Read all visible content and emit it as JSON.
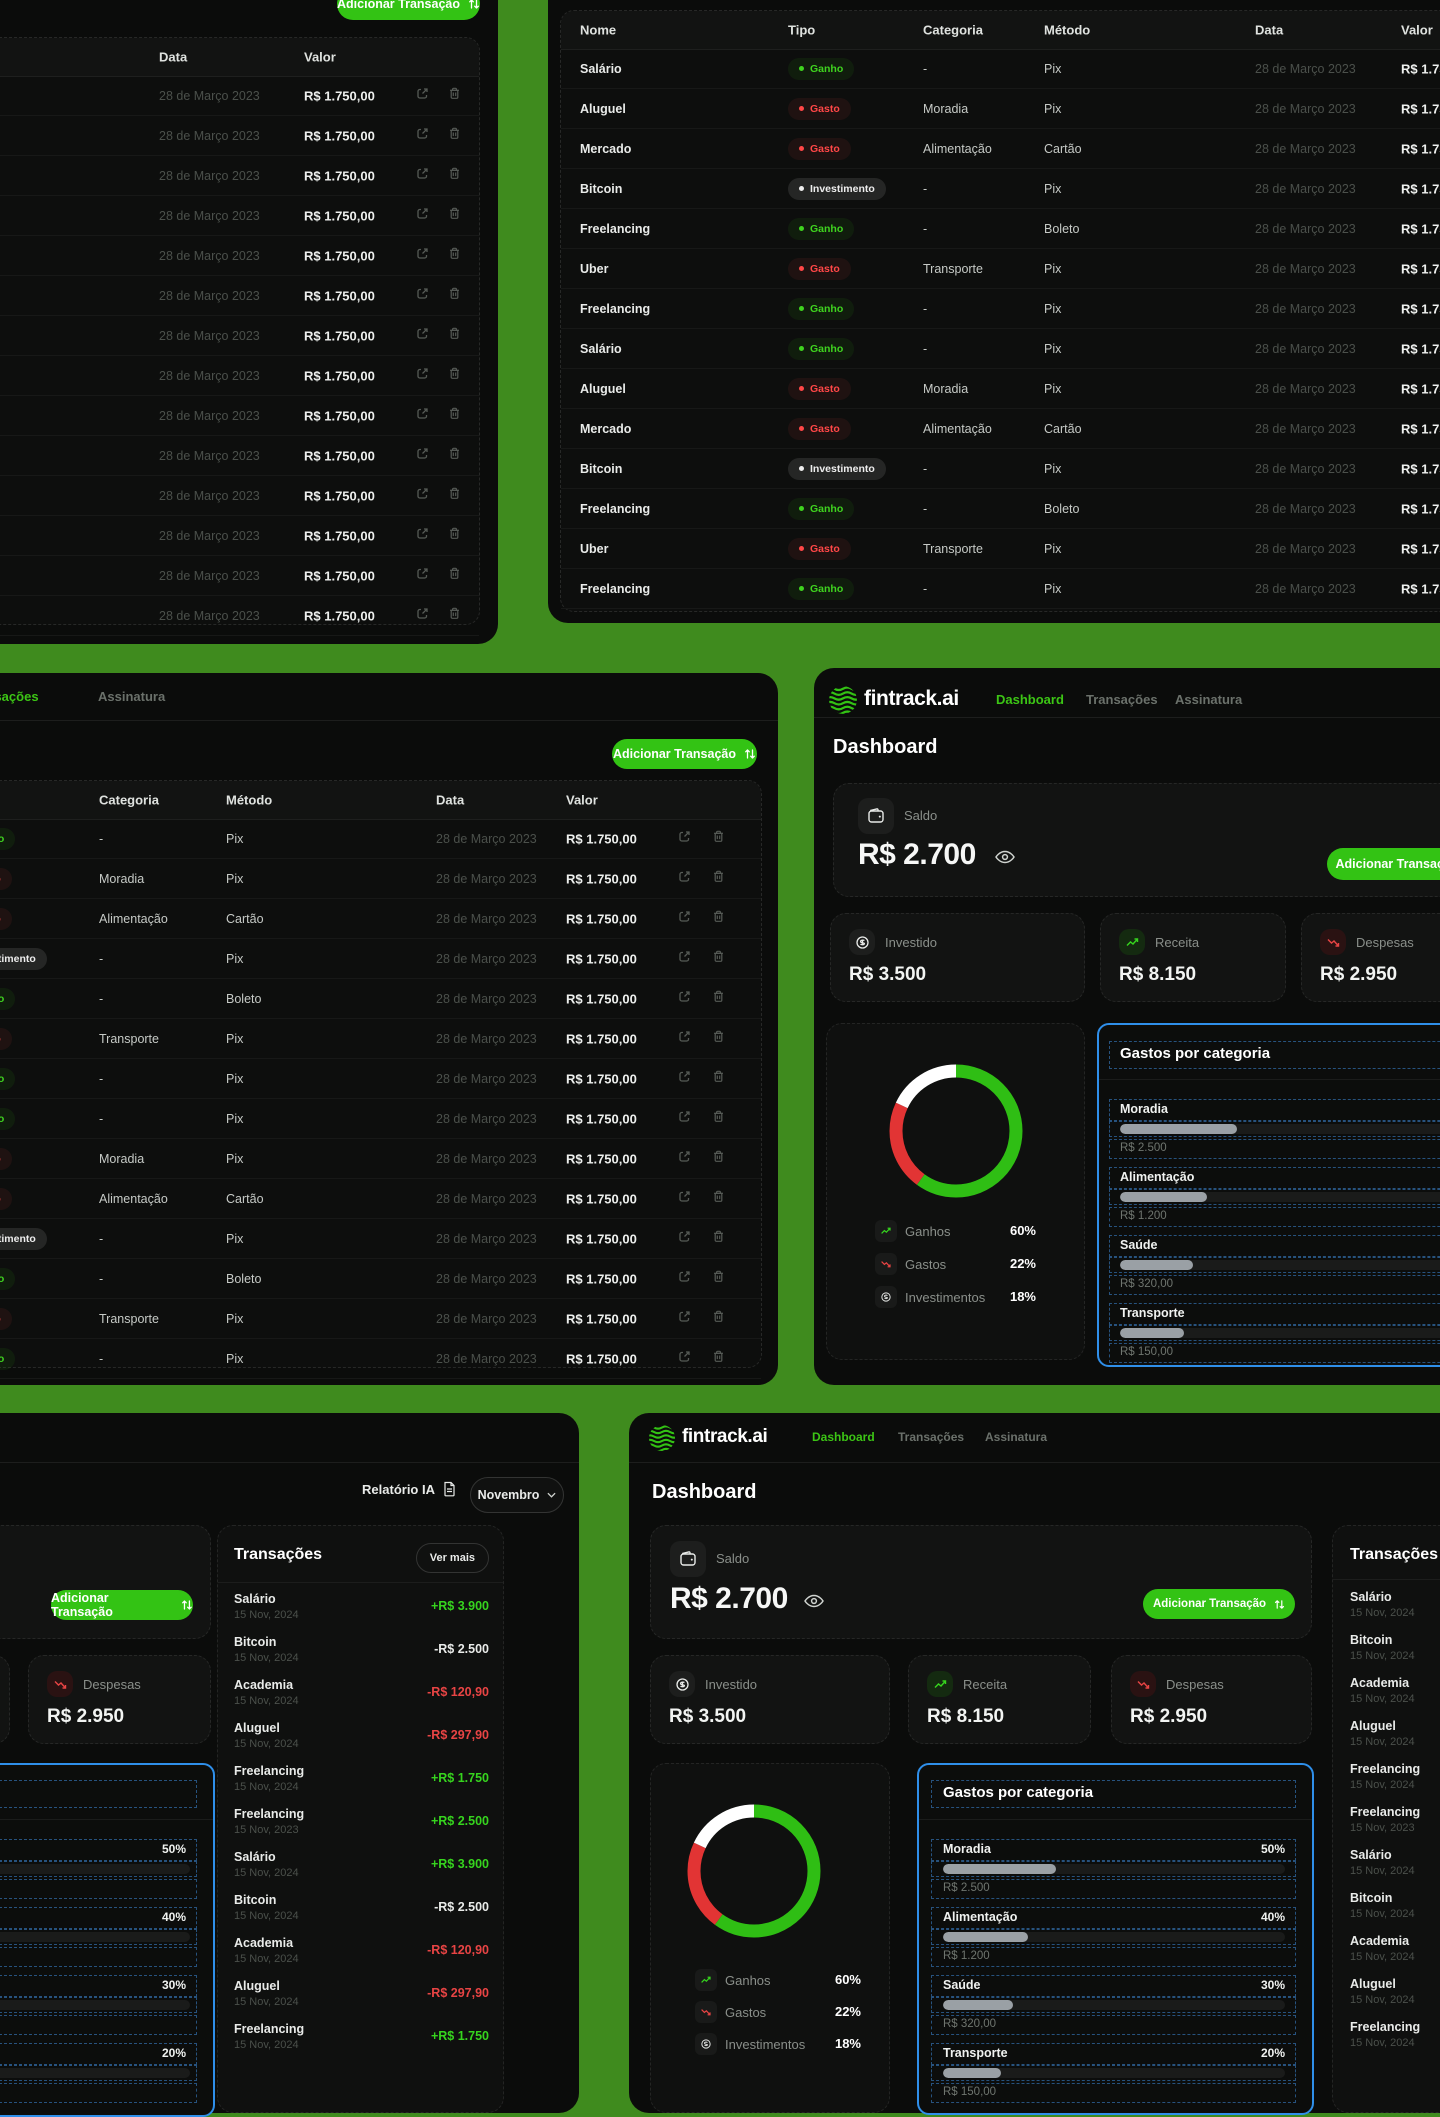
{
  "colors": {
    "background_green": "#3f8b1e",
    "accent_green": "#33c314",
    "red": "#e84444",
    "blue_selection": "#2f8fea",
    "donut_green": "#2fbe14",
    "donut_red": "#e23434",
    "donut_white": "#ffffff",
    "bar_fill": "#9aa0a5"
  },
  "app": {
    "brand": "fintrack.ai",
    "nav": {
      "dashboard": "Dashboard",
      "transactions": "Transações",
      "subscription": "Assinatura"
    },
    "page_title": "Dashboard",
    "add_transaction": "Adicionar Transação"
  },
  "saldo": {
    "label": "Saldo",
    "value": "R$ 2.700"
  },
  "stats": {
    "invested_label": "Investido",
    "invested_value": "R$ 3.500",
    "income_label": "Receita",
    "income_value": "R$ 8.150",
    "expenses_label": "Despesas",
    "expenses_value": "R$ 2.950"
  },
  "donut": {
    "legend": [
      {
        "label": "Ganhos",
        "pct": "60%",
        "icon": "trend-up"
      },
      {
        "label": "Gastos",
        "pct": "22%",
        "icon": "trend-down"
      },
      {
        "label": "Investimentos",
        "pct": "18%",
        "icon": "coin"
      }
    ]
  },
  "gastos": {
    "title": "Gastos por categoria",
    "mid_rows": [
      {
        "label": "Moradia",
        "value": "R$ 2.500",
        "fill": "117px"
      },
      {
        "label": "Alimentação",
        "value": "R$ 1.200",
        "fill": "87px"
      },
      {
        "label": "Saúde",
        "value": "R$ 320,00",
        "fill": "73px"
      },
      {
        "label": "Transporte",
        "value": "R$ 150,00",
        "fill": "64px"
      }
    ],
    "bottom_rows": [
      {
        "label": "Moradia",
        "value": "R$ 2.500",
        "pct": "50%",
        "fill": "113px",
        "fill_pct": "50%"
      },
      {
        "label": "Alimentação",
        "value": "R$ 1.200",
        "pct": "40%",
        "fill": "85px",
        "fill_pct": "40%"
      },
      {
        "label": "Saúde",
        "value": "R$ 320,00",
        "pct": "30%",
        "fill": "70px",
        "fill_pct": "30%"
      },
      {
        "label": "Transporte",
        "value": "R$ 150,00",
        "pct": "20%",
        "fill": "58px",
        "fill_pct": "20%"
      }
    ]
  },
  "transactions_table": {
    "columns": {
      "name": "Nome",
      "type": "Tipo",
      "category": "Categoria",
      "method": "Método",
      "date": "Data",
      "value": "Valor"
    },
    "rows": [
      {
        "name": "Salário",
        "kind": "ganho",
        "type": "Ganho",
        "category": "-",
        "method": "Pix",
        "date": "28 de Março 2023",
        "value": "R$ 1.750,00"
      },
      {
        "name": "Aluguel",
        "kind": "gasto",
        "type": "Gasto",
        "category": "Moradia",
        "method": "Pix",
        "date": "28 de Março 2023",
        "value": "R$ 1.750,00"
      },
      {
        "name": "Mercado",
        "kind": "gasto",
        "type": "Gasto",
        "category": "Alimentação",
        "method": "Cartão",
        "date": "28 de Março 2023",
        "value": "R$ 1.750,00"
      },
      {
        "name": "Bitcoin",
        "kind": "invest",
        "type": "Investimento",
        "category": "-",
        "method": "Pix",
        "date": "28 de Março 2023",
        "value": "R$ 1.750,00"
      },
      {
        "name": "Freelancing",
        "kind": "ganho",
        "type": "Ganho",
        "category": "-",
        "method": "Boleto",
        "date": "28 de Março 2023",
        "value": "R$ 1.750,00"
      },
      {
        "name": "Uber",
        "kind": "gasto",
        "type": "Gasto",
        "category": "Transporte",
        "method": "Pix",
        "date": "28 de Março 2023",
        "value": "R$ 1.750,00"
      },
      {
        "name": "Freelancing",
        "kind": "ganho",
        "type": "Ganho",
        "category": "-",
        "method": "Pix",
        "date": "28 de Março 2023",
        "value": "R$ 1.750,00"
      },
      {
        "name": "Salário",
        "kind": "ganho",
        "type": "Ganho",
        "category": "-",
        "method": "Pix",
        "date": "28 de Março 2023",
        "value": "R$ 1.750,00"
      },
      {
        "name": "Aluguel",
        "kind": "gasto",
        "type": "Gasto",
        "category": "Moradia",
        "method": "Pix",
        "date": "28 de Março 2023",
        "value": "R$ 1.750,00"
      },
      {
        "name": "Mercado",
        "kind": "gasto",
        "type": "Gasto",
        "category": "Alimentação",
        "method": "Cartão",
        "date": "28 de Março 2023",
        "value": "R$ 1.750,00"
      },
      {
        "name": "Bitcoin",
        "kind": "invest",
        "type": "Investimento",
        "category": "-",
        "method": "Pix",
        "date": "28 de Março 2023",
        "value": "R$ 1.750,00"
      },
      {
        "name": "Freelancing",
        "kind": "ganho",
        "type": "Ganho",
        "category": "-",
        "method": "Boleto",
        "date": "28 de Março 2023",
        "value": "R$ 1.750,00"
      },
      {
        "name": "Uber",
        "kind": "gasto",
        "type": "Gasto",
        "category": "Transporte",
        "method": "Pix",
        "date": "28 de Março 2023",
        "value": "R$ 1.750,00"
      },
      {
        "name": "Freelancing",
        "kind": "ganho",
        "type": "Ganho",
        "category": "-",
        "method": "Pix",
        "date": "28 de Março 2023",
        "value": "R$ 1.750,00"
      }
    ]
  },
  "tx_panel": {
    "title": "Transações",
    "see_more": "Ver mais",
    "items": [
      {
        "name": "Salário",
        "date": "15 Nov, 2024",
        "value": "+R$ 3.900",
        "dir": "pos"
      },
      {
        "name": "Bitcoin",
        "date": "15 Nov, 2024",
        "value": "-R$ 2.500",
        "dir": "neu"
      },
      {
        "name": "Academia",
        "date": "15 Nov, 2024",
        "value": "-R$ 120,90",
        "dir": "neg"
      },
      {
        "name": "Aluguel",
        "date": "15 Nov, 2024",
        "value": "-R$ 297,90",
        "dir": "neg"
      },
      {
        "name": "Freelancing",
        "date": "15 Nov, 2024",
        "value": "+R$ 1.750",
        "dir": "pos"
      },
      {
        "name": "Freelancing",
        "date": "15 Nov, 2023",
        "value": "+R$ 2.500",
        "dir": "pos"
      },
      {
        "name": "Salário",
        "date": "15 Nov, 2024",
        "value": "+R$ 3.900",
        "dir": "pos"
      },
      {
        "name": "Bitcoin",
        "date": "15 Nov, 2024",
        "value": "-R$ 2.500",
        "dir": "neu"
      },
      {
        "name": "Academia",
        "date": "15 Nov, 2024",
        "value": "-R$ 120,90",
        "dir": "neg"
      },
      {
        "name": "Aluguel",
        "date": "15 Nov, 2024",
        "value": "-R$ 297,90",
        "dir": "neg"
      },
      {
        "name": "Freelancing",
        "date": "15 Nov, 2024",
        "value": "+R$ 1.750",
        "dir": "pos"
      }
    ]
  },
  "report": {
    "label": "Relatório IA",
    "month": "Novembro"
  }
}
